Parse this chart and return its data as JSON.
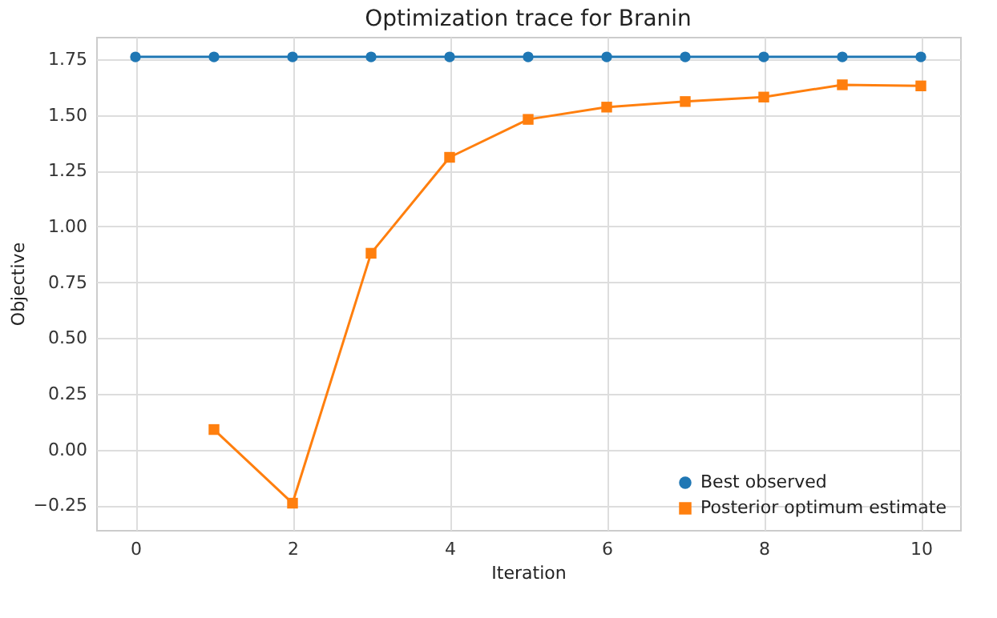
{
  "chart_data": {
    "type": "line",
    "title": "Optimization trace for Branin",
    "xlabel": "Iteration",
    "ylabel": "Objective",
    "x": [
      0,
      1,
      2,
      3,
      4,
      5,
      6,
      7,
      8,
      9,
      10
    ],
    "series": [
      {
        "name": "Best observed",
        "color": "#1f77b4",
        "marker": "circle",
        "values": [
          1.76,
          1.76,
          1.76,
          1.76,
          1.76,
          1.76,
          1.76,
          1.76,
          1.76,
          1.76,
          1.76
        ]
      },
      {
        "name": "Posterior optimum estimate",
        "color": "#ff7f0e",
        "marker": "square",
        "values": [
          null,
          0.09,
          -0.24,
          0.88,
          1.31,
          1.48,
          1.535,
          1.56,
          1.58,
          1.635,
          1.63
        ]
      }
    ],
    "xlim": [
      -0.5,
      10.5
    ],
    "xticks": [
      0,
      2,
      4,
      6,
      8,
      10
    ],
    "ylim": [
      -0.36,
      1.85
    ],
    "yticks": [
      {
        "value": -0.25,
        "label": "−0.25"
      },
      {
        "value": 0,
        "label": "0.00"
      },
      {
        "value": 0.25,
        "label": "0.25"
      },
      {
        "value": 0.5,
        "label": "0.50"
      },
      {
        "value": 0.75,
        "label": "0.75"
      },
      {
        "value": 1,
        "label": "1.00"
      },
      {
        "value": 1.25,
        "label": "1.25"
      },
      {
        "value": 1.5,
        "label": "1.50"
      },
      {
        "value": 1.75,
        "label": "1.75"
      }
    ],
    "grid": true,
    "legend": "bottom right",
    "line_style": "solid"
  }
}
